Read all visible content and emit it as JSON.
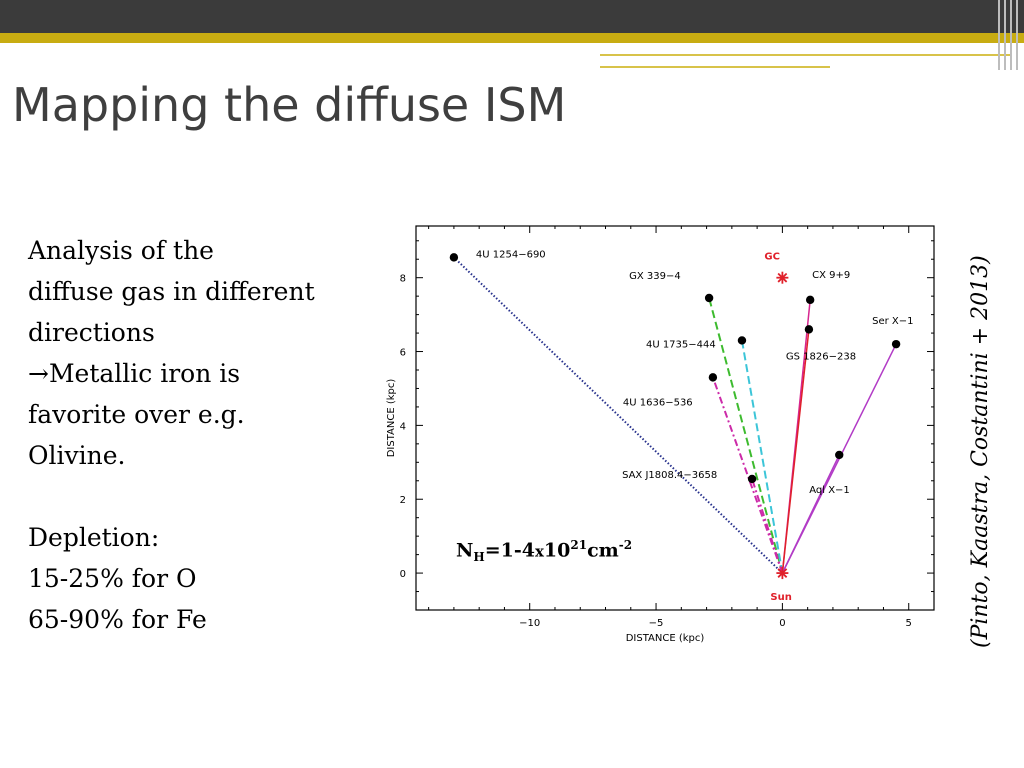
{
  "slide": {
    "title": "Mapping the diffuse ISM",
    "bullets": {
      "line1": "Analysis of  the",
      "line2": "diffuse gas in different",
      "line3": "directions",
      "arrow": "→",
      "line4": "Metallic iron is",
      "line5": "favorite over e.g.",
      "line6": "Olivine.",
      "line7": "Depletion:",
      "line8": "15-25% for O",
      "line9": "65-90% for Fe"
    },
    "citation": "(Pinto, Kaastra, Costantini + 2013)",
    "nh": {
      "pre": "N",
      "sub": "H",
      "mid": "=1-4",
      "x": "x",
      "ten": "10",
      "exp": "21",
      "unit": "cm",
      "unit_exp": "-2"
    }
  },
  "chart_data": {
    "type": "scatter",
    "xlabel": "DISTANCE (kpc)",
    "ylabel": "DISTANCE (kpc)",
    "xlim": [
      -14.5,
      6
    ],
    "ylim": [
      -1,
      9.4
    ],
    "xticks": [
      -10,
      -5,
      0,
      5
    ],
    "yticks": [
      0,
      2,
      4,
      6,
      8
    ],
    "grid": false,
    "origin": {
      "label": "Sun",
      "x": 0,
      "y": 0,
      "color": "#e0202a"
    },
    "center": {
      "label": "GC",
      "x": 0,
      "y": 8,
      "color": "#e0202a"
    },
    "sources": [
      {
        "name": "4U 1254−690",
        "x": -13.0,
        "y": 8.55,
        "color": "#27318c",
        "style": "dotted"
      },
      {
        "name": "GX 339−4",
        "x": -2.9,
        "y": 7.45,
        "color": "#3dbb2e",
        "style": "dashed"
      },
      {
        "name": "4U 1735−444",
        "x": -1.6,
        "y": 6.3,
        "color": "#3cc5d8",
        "style": "dashed"
      },
      {
        "name": "4U 1636−536",
        "x": -2.75,
        "y": 5.3,
        "color": "#cc2aa8",
        "style": "dashdot"
      },
      {
        "name": "SAX J1808.4−3658",
        "x": -1.2,
        "y": 2.55,
        "color": "#cc2aa8",
        "style": "dashdot"
      },
      {
        "name": "CX 9+9",
        "x": 1.1,
        "y": 7.4,
        "color": "#d7268f",
        "style": "solid"
      },
      {
        "name": "GS 1826−238",
        "x": 1.05,
        "y": 6.6,
        "color": "#e0202a",
        "style": "solid"
      },
      {
        "name": "Ser X−1",
        "x": 4.5,
        "y": 6.2,
        "color": "#b23bc6",
        "style": "solid"
      },
      {
        "name": "Aql X−1",
        "x": 2.25,
        "y": 3.2,
        "color": "#b23bc6",
        "style": "solid"
      }
    ]
  }
}
